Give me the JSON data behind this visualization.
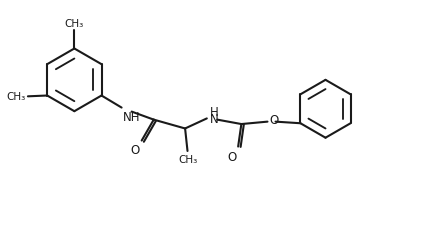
{
  "bg_color": "#ffffff",
  "line_color": "#1a1a1a",
  "line_width": 1.5,
  "font_size": 8.5,
  "font_color": "#1a1a1a",
  "inner_ratio": 0.68,
  "fig_w": 4.22,
  "fig_h": 2.3,
  "dpi": 100,
  "xlim": [
    0,
    10.5
  ],
  "ylim": [
    0,
    5.5
  ]
}
